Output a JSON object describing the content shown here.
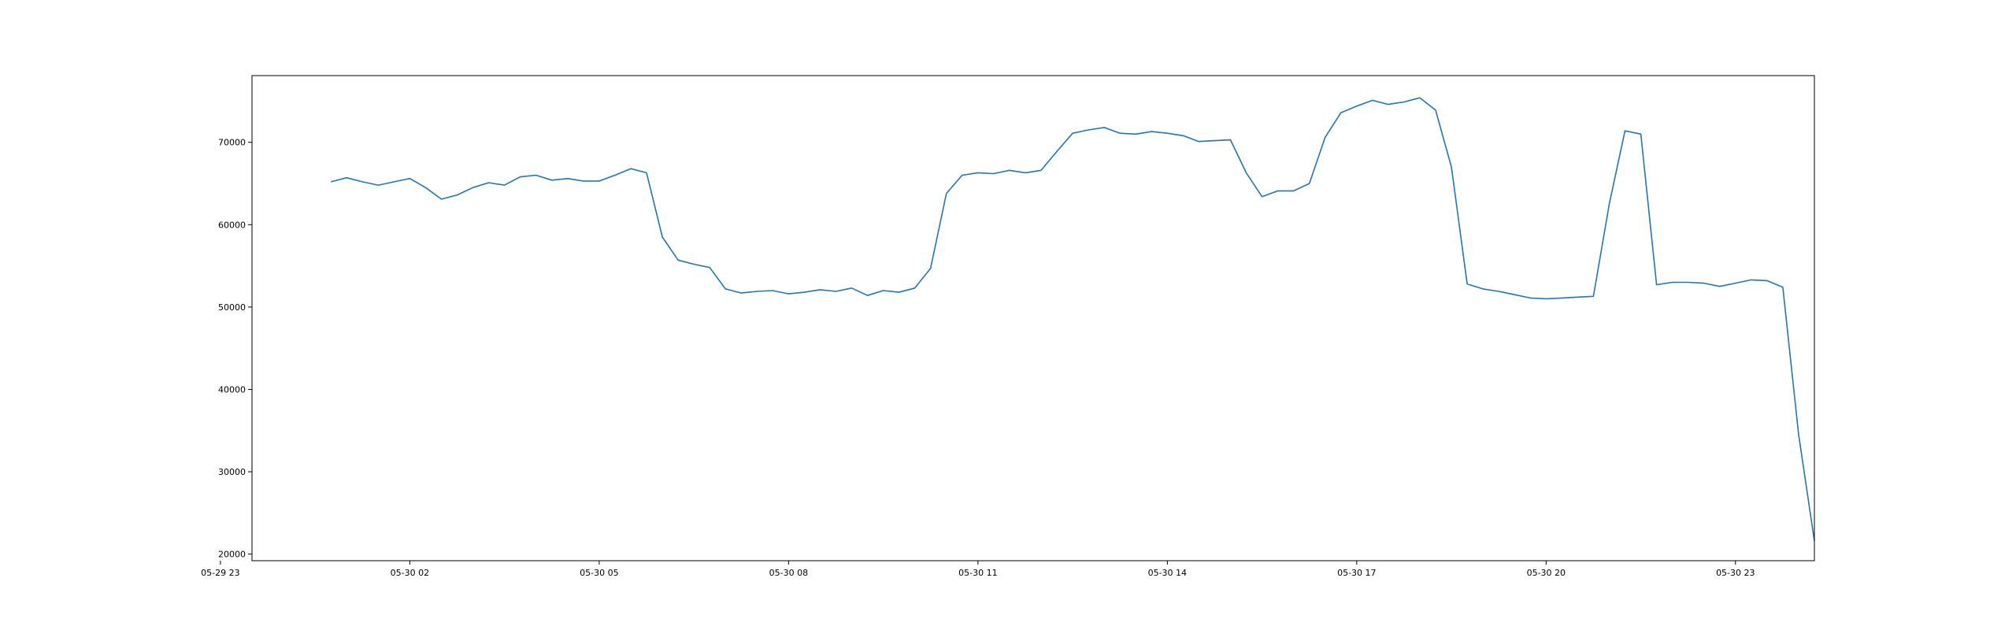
{
  "chart_data": {
    "type": "line",
    "title": "",
    "xlabel": "",
    "ylabel": "",
    "grid": false,
    "x_range": [
      "05-29 23:30",
      "05-31 00:15"
    ],
    "ylim": [
      19200,
      78100
    ],
    "x_ticks": [
      "05-29 23",
      "05-30 02",
      "05-30 05",
      "05-30 08",
      "05-30 11",
      "05-30 14",
      "05-30 17",
      "05-30 20",
      "05-30 23"
    ],
    "y_ticks": [
      20000,
      30000,
      40000,
      50000,
      60000,
      70000
    ],
    "series": [
      {
        "color": "#1f77b4",
        "x": [
          "05-30 00:45",
          "05-30 01:00",
          "05-30 01:15",
          "05-30 01:30",
          "05-30 01:45",
          "05-30 02:00",
          "05-30 02:15",
          "05-30 02:30",
          "05-30 02:45",
          "05-30 03:00",
          "05-30 03:15",
          "05-30 03:30",
          "05-30 03:45",
          "05-30 04:00",
          "05-30 04:15",
          "05-30 04:30",
          "05-30 04:45",
          "05-30 05:00",
          "05-30 05:15",
          "05-30 05:30",
          "05-30 05:45",
          "05-30 06:00",
          "05-30 06:15",
          "05-30 06:30",
          "05-30 06:45",
          "05-30 07:00",
          "05-30 07:15",
          "05-30 07:30",
          "05-30 07:45",
          "05-30 08:00",
          "05-30 08:15",
          "05-30 08:30",
          "05-30 08:45",
          "05-30 09:00",
          "05-30 09:15",
          "05-30 09:30",
          "05-30 09:45",
          "05-30 10:00",
          "05-30 10:15",
          "05-30 10:30",
          "05-30 10:45",
          "05-30 11:00",
          "05-30 11:15",
          "05-30 11:30",
          "05-30 11:45",
          "05-30 12:00",
          "05-30 12:15",
          "05-30 12:30",
          "05-30 12:45",
          "05-30 13:00",
          "05-30 13:15",
          "05-30 13:30",
          "05-30 13:45",
          "05-30 14:00",
          "05-30 14:15",
          "05-30 14:30",
          "05-30 14:45",
          "05-30 15:00",
          "05-30 15:15",
          "05-30 15:30",
          "05-30 15:45",
          "05-30 16:00",
          "05-30 16:15",
          "05-30 16:30",
          "05-30 16:45",
          "05-30 17:00",
          "05-30 17:15",
          "05-30 17:30",
          "05-30 17:45",
          "05-30 18:00",
          "05-30 18:15",
          "05-30 18:30",
          "05-30 18:45",
          "05-30 19:00",
          "05-30 19:15",
          "05-30 19:30",
          "05-30 19:45",
          "05-30 20:00",
          "05-30 20:15",
          "05-30 20:30",
          "05-30 20:45",
          "05-30 21:00",
          "05-30 21:15",
          "05-30 21:30",
          "05-30 21:45",
          "05-30 22:00",
          "05-30 22:15",
          "05-30 22:30",
          "05-30 22:45",
          "05-30 23:00",
          "05-30 23:15",
          "05-30 23:30",
          "05-30 23:45"
        ],
        "values": [
          65200,
          65700,
          65200,
          64800,
          65200,
          65600,
          64500,
          63100,
          63600,
          64500,
          65100,
          64800,
          65800,
          66000,
          65400,
          65600,
          65300,
          65300,
          66000,
          66800,
          66300,
          58500,
          55700,
          55200,
          54800,
          52200,
          51700,
          51900,
          52000,
          51600,
          51800,
          52100,
          51900,
          52300,
          51400,
          52000,
          51800,
          52300,
          54700,
          63800,
          66000,
          66300,
          66200,
          66600,
          66300,
          66600,
          68900,
          71100,
          71500,
          71800,
          71100,
          71000,
          71300,
          71100,
          70800,
          70100,
          70200,
          70300,
          66300,
          63400,
          64100,
          64100,
          65000,
          70600,
          73600,
          74400,
          75100,
          74600,
          74900,
          75400,
          73900,
          67000,
          52800,
          52200,
          51900,
          51500,
          51100,
          51000,
          51100,
          51200,
          51300,
          62500,
          71400,
          71000,
          52700,
          53000,
          53000,
          52900,
          52500,
          52900,
          53300,
          53200,
          52400
        ]
      }
    ],
    "series_tail": {
      "x": [
        "05-31 00:00",
        "05-31 00:15"
      ],
      "values": [
        34500,
        21600
      ]
    }
  }
}
